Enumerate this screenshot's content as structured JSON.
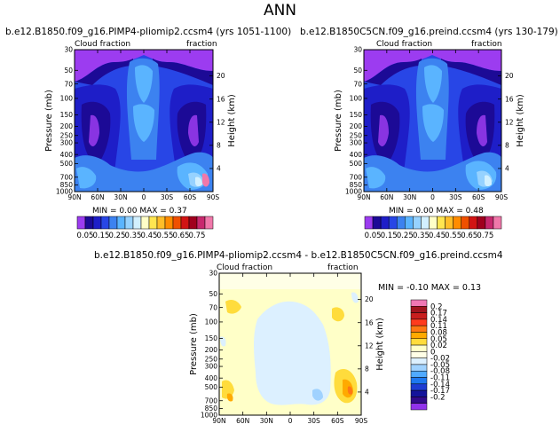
{
  "page": {
    "title": "ANN"
  },
  "panels": {
    "left": {
      "title": "b.e12.B1850.f09_g16.PIMP4-pliomip2.ccsm4 (yrs 1051-1100)",
      "left_label": "Cloud fraction",
      "right_label": "fraction",
      "stats": "MIN = 0.00 MAX = 0.37"
    },
    "right": {
      "title": "b.e12.B1850C5CN.f09_g16.preind.ccsm4 (yrs 130-179)",
      "left_label": "Cloud fraction",
      "right_label": "fraction",
      "stats": "MIN = 0.00 MAX = 0.48"
    },
    "diff": {
      "title": "b.e12.B1850.f09_g16.PIMP4-pliomip2.ccsm4 - b.e12.B1850C5CN.f09_g16.preind.ccsm4",
      "left_label": "Cloud fraction",
      "right_label": "fraction",
      "stats": "MIN = -0.10 MAX = 0.13"
    }
  },
  "chart_data": [
    {
      "type": "heatmap",
      "panel": "left",
      "title": "b.e12.B1850.f09_g16.PIMP4-pliomip2.ccsm4 (yrs 1051-1100)",
      "xlabel": "",
      "ylabel": "Pressure (mb)",
      "y2label": "Height (km)",
      "x_ticks": [
        "90N",
        "60N",
        "30N",
        "0",
        "30S",
        "60S",
        "90S"
      ],
      "y_ticks": [
        30,
        50,
        70,
        100,
        150,
        200,
        250,
        300,
        400,
        500,
        700,
        850,
        1000
      ],
      "y2_ticks": [
        4,
        8,
        12,
        16,
        20
      ],
      "min": 0.0,
      "max": 0.37
    },
    {
      "type": "heatmap",
      "panel": "right",
      "title": "b.e12.B1850C5CN.f09_g16.preind.ccsm4 (yrs 130-179)",
      "xlabel": "",
      "ylabel": "Pressure (mb)",
      "y2label": "Height (km)",
      "x_ticks": [
        "90N",
        "60N",
        "30N",
        "0",
        "30S",
        "60S",
        "90S"
      ],
      "y_ticks": [
        30,
        50,
        70,
        100,
        150,
        200,
        250,
        300,
        400,
        500,
        700,
        850,
        1000
      ],
      "y2_ticks": [
        4,
        8,
        12,
        16,
        20
      ],
      "min": 0.0,
      "max": 0.48
    },
    {
      "type": "heatmap",
      "panel": "diff",
      "title": "b.e12.B1850.f09_g16.PIMP4-pliomip2.ccsm4 - b.e12.B1850C5CN.f09_g16.preind.ccsm4",
      "xlabel": "",
      "ylabel": "Pressure (mb)",
      "y2label": "Height (km)",
      "x_ticks": [
        "90N",
        "60N",
        "30N",
        "0",
        "30S",
        "60S",
        "90S"
      ],
      "y_ticks": [
        30,
        50,
        70,
        100,
        150,
        200,
        250,
        300,
        400,
        500,
        700,
        850,
        1000
      ],
      "y2_ticks": [
        4,
        8,
        12,
        16,
        20
      ],
      "min": -0.1,
      "max": 0.13
    }
  ],
  "colorbar_abs": {
    "labels": [
      "0.05",
      "0.15",
      "0.25",
      "0.35",
      "0.45",
      "0.55",
      "0.65",
      "0.75"
    ],
    "colors": [
      "#9c3cf0",
      "#1c0a96",
      "#1e1ec8",
      "#2846e6",
      "#3c82f0",
      "#5ab4ff",
      "#96d2ff",
      "#d2f0ff",
      "#ffffc8",
      "#ffe650",
      "#ffbe28",
      "#ff8c00",
      "#f05000",
      "#d21414",
      "#a0001e",
      "#c8286e",
      "#f078aa"
    ]
  },
  "colorbar_diff": {
    "labels": [
      "0.2",
      "0.17",
      "0.14",
      "0.11",
      "0.08",
      "0.05",
      "0.02",
      "0",
      "-0.02",
      "-0.05",
      "-0.08",
      "-0.11",
      "-0.14",
      "-0.17",
      "-0.2"
    ],
    "colors": [
      "#f078b4",
      "#a0141e",
      "#c81e1e",
      "#ff3c1e",
      "#ff7814",
      "#ffaa00",
      "#ffdc3c",
      "#ffffc8",
      "#ffffe6",
      "#dcf0ff",
      "#a0d2ff",
      "#50aaff",
      "#1e78f0",
      "#1e3cd2",
      "#14149b",
      "#320a8c",
      "#9132eb"
    ]
  }
}
